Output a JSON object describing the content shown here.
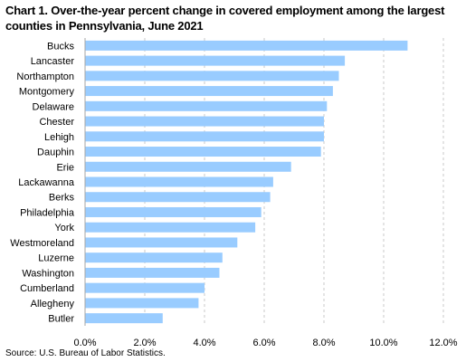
{
  "title": "Chart 1. Over-the-year percent change in covered employment among the largest counties in Pennsylvania, June 2021",
  "source": "Source:  U.S. Bureau of Labor Statistics.",
  "chart_data": {
    "type": "bar",
    "orientation": "horizontal",
    "categories": [
      "Bucks",
      "Lancaster",
      "Northampton",
      "Montgomery",
      "Delaware",
      "Chester",
      "Lehigh",
      "Dauphin",
      "Erie",
      "Lackawanna",
      "Berks",
      "Philadelphia",
      "York",
      "Westmoreland",
      "Luzerne",
      "Washington",
      "Cumberland",
      "Allegheny",
      "Butler"
    ],
    "values": [
      10.8,
      8.7,
      8.5,
      8.3,
      8.1,
      8.0,
      8.0,
      7.9,
      6.9,
      6.3,
      6.2,
      5.9,
      5.7,
      5.1,
      4.6,
      4.5,
      4.0,
      3.8,
      2.6
    ],
    "xlim": [
      0,
      12
    ],
    "xticks": [
      "0.0%",
      "2.0%",
      "4.0%",
      "6.0%",
      "8.0%",
      "10.0%",
      "12.0%"
    ],
    "bar_color": "#99CCFF",
    "grid": "vertical dashed",
    "legend": "none"
  }
}
